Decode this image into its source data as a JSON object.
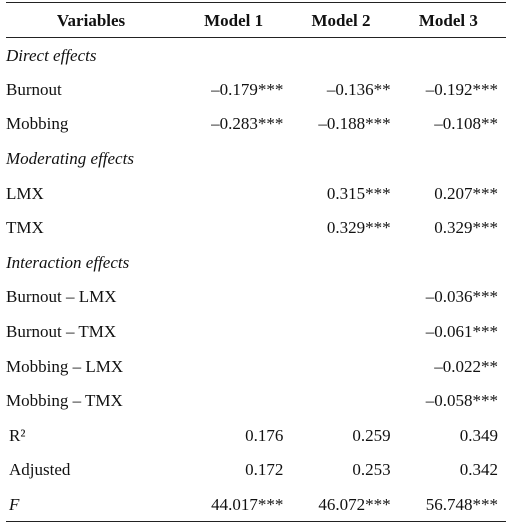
{
  "header": {
    "variables": "Variables",
    "model1": "Model 1",
    "model2": "Model 2",
    "model3": "Model 3"
  },
  "sections": {
    "direct": "Direct effects",
    "moderating": "Moderating effects",
    "interaction": "Interaction effects"
  },
  "rows": {
    "burnout": {
      "label": "Burnout",
      "m1": "–0.179***",
      "m2": "–0.136**",
      "m3": "–0.192***"
    },
    "mobbing": {
      "label": "Mobbing",
      "m1": "–0.283***",
      "m2": "–0.188***",
      "m3": "–0.108**"
    },
    "lmx": {
      "label": "LMX",
      "m1": "",
      "m2": "0.315***",
      "m3": "0.207***"
    },
    "tmx": {
      "label": "TMX",
      "m1": "",
      "m2": "0.329***",
      "m3": "0.329***"
    },
    "burnout_lmx": {
      "label": "Burnout – LMX",
      "m1": "",
      "m2": "",
      "m3": "–0.036***"
    },
    "burnout_tmx": {
      "label": "Burnout – TMX",
      "m1": "",
      "m2": "",
      "m3": "–0.061***"
    },
    "mobbing_lmx": {
      "label": "Mobbing – LMX",
      "m1": "",
      "m2": "",
      "m3": "–0.022**"
    },
    "mobbing_tmx": {
      "label": "Mobbing – TMX",
      "m1": "",
      "m2": "",
      "m3": "–0.058***"
    },
    "r2": {
      "label": " R²",
      "m1": "0.176",
      "m2": "0.259",
      "m3": "0.349"
    },
    "adjusted": {
      "label": "Adjusted",
      "m1": "0.172",
      "m2": "0.253",
      "m3": "0.342"
    },
    "f": {
      "label": "F",
      "m1": "44.017***",
      "m2": "46.072***",
      "m3": "56.748***"
    }
  }
}
